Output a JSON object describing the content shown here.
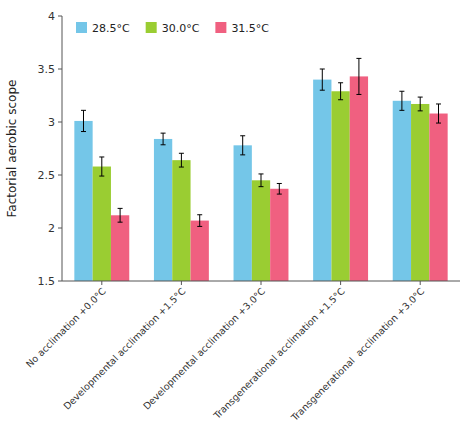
{
  "chart_data": {
    "type": "bar",
    "categories": [
      "No acclimation +0.0°C",
      "Developmental acclimation +1.5°C",
      "Developmental acclimation +3.0°C",
      "Transgenerational acclimation +1.5°C",
      "Transgenerational  acclimation +3.0°C"
    ],
    "series": [
      {
        "name": "28.5°C",
        "color": "#74C6E8",
        "values": [
          3.01,
          2.84,
          2.78,
          3.4,
          3.2
        ],
        "errors": [
          0.1,
          0.055,
          0.09,
          0.1,
          0.09
        ]
      },
      {
        "name": "30.0°C",
        "color": "#9ACD32",
        "values": [
          2.58,
          2.64,
          2.45,
          3.29,
          3.17
        ],
        "errors": [
          0.09,
          0.065,
          0.06,
          0.08,
          0.065
        ]
      },
      {
        "name": "31.5°C",
        "color": "#F06080",
        "values": [
          2.12,
          2.07,
          2.37,
          3.43,
          3.08
        ],
        "errors": [
          0.065,
          0.055,
          0.05,
          0.17,
          0.09
        ]
      }
    ],
    "ylabel": "Factorial aerobic scope",
    "ylim": [
      1.5,
      4.0
    ],
    "yticks": [
      1.5,
      2,
      2.5,
      3,
      3.5,
      4
    ],
    "legend": "upper left",
    "grid": false
  }
}
